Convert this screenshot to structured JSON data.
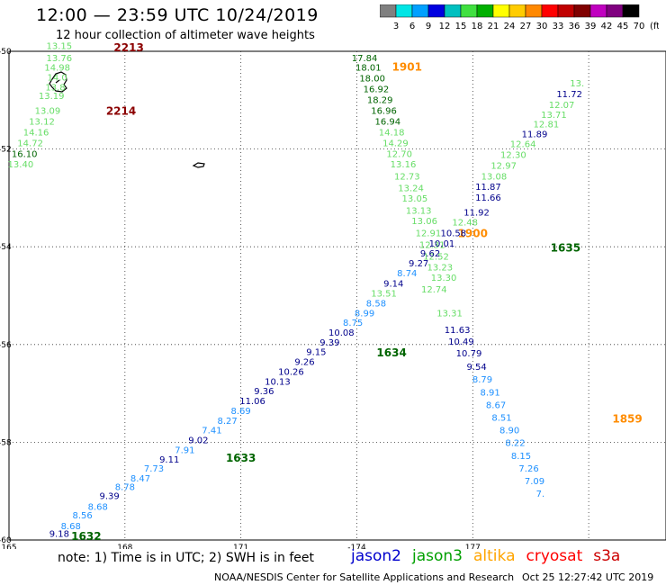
{
  "header": {
    "title": "12:00 — 23:59 UTC 10/24/2019",
    "subtitle": "12 hour collection of altimeter wave heights"
  },
  "colorbar": {
    "labels": [
      "3",
      "6",
      "9",
      "12",
      "15",
      "18",
      "21",
      "24",
      "27",
      "30",
      "33",
      "36",
      "39",
      "42",
      "45",
      "70"
    ],
    "unit": "(ft)",
    "colors": [
      "#808080",
      "#00e5e5",
      "#00a0ff",
      "#0000e0",
      "#00c0c0",
      "#40e040",
      "#00b000",
      "#ffff00",
      "#ffcc00",
      "#ff8800",
      "#ff0000",
      "#c00000",
      "#800000",
      "#c000c0",
      "#800080",
      "#000000"
    ]
  },
  "map": {
    "lon_ticks": [
      "165",
      "168",
      "171",
      "-174",
      "177"
    ],
    "lat_ticks": [
      "-50",
      "-52",
      "-54",
      "-56",
      "-58",
      "-60"
    ],
    "lon_range": [
      165,
      182
    ],
    "lat_range": [
      -60,
      -50
    ]
  },
  "tracks": [
    {
      "satellite": "cryosat",
      "labels": [
        {
          "text": "2213",
          "lon": 168.1,
          "lat": -50.0,
          "color": "#8b0000"
        },
        {
          "text": "2214",
          "lon": 167.9,
          "lat": -51.3,
          "color": "#8b0000"
        }
      ],
      "points": [
        {
          "value": "13.15",
          "lon": 166.3,
          "lat": -49.95,
          "color": "#66dd66"
        },
        {
          "value": "13.76",
          "lon": 166.3,
          "lat": -50.2,
          "color": "#66dd66"
        },
        {
          "value": "14.98",
          "lon": 166.25,
          "lat": -50.4,
          "color": "#66dd66"
        },
        {
          "value": "14.0",
          "lon": 166.25,
          "lat": -50.6,
          "color": "#66dd66"
        },
        {
          "value": "13.8",
          "lon": 166.2,
          "lat": -50.8,
          "color": "#66dd66"
        },
        {
          "value": "13.19",
          "lon": 166.1,
          "lat": -50.98,
          "color": "#66dd66"
        },
        {
          "value": "13.09",
          "lon": 166.0,
          "lat": -51.28,
          "color": "#66dd66"
        },
        {
          "value": "13.12",
          "lon": 165.85,
          "lat": -51.5,
          "color": "#66dd66"
        },
        {
          "value": "14.16",
          "lon": 165.7,
          "lat": -51.72,
          "color": "#66dd66"
        },
        {
          "value": "14.72",
          "lon": 165.55,
          "lat": -51.94,
          "color": "#66dd66"
        },
        {
          "value": "16.10",
          "lon": 165.4,
          "lat": -52.16,
          "color": "#006400"
        },
        {
          "value": "13.40",
          "lon": 165.3,
          "lat": -52.38,
          "color": "#66dd66"
        }
      ]
    },
    {
      "satellite": "altika",
      "labels": [
        {
          "text": "1901",
          "lon": 175.3,
          "lat": -50.4,
          "color": "#ff8c00"
        },
        {
          "text": "1900",
          "lon": 177.0,
          "lat": -53.8,
          "color": "#ff8c00"
        },
        {
          "text": "1859",
          "lon": 181.0,
          "lat": -57.6,
          "color": "#ff8c00"
        }
      ],
      "points": [
        {
          "value": "17.84",
          "lon": 174.2,
          "lat": -50.2,
          "color": "#006400"
        },
        {
          "value": "18.01",
          "lon": 174.3,
          "lat": -50.4,
          "color": "#006400"
        },
        {
          "value": "18.00",
          "lon": 174.4,
          "lat": -50.62,
          "color": "#006400"
        },
        {
          "value": "16.92",
          "lon": 174.5,
          "lat": -50.84,
          "color": "#006400"
        },
        {
          "value": "18.29",
          "lon": 174.6,
          "lat": -51.06,
          "color": "#006400"
        },
        {
          "value": "16.96",
          "lon": 174.7,
          "lat": -51.28,
          "color": "#006400"
        },
        {
          "value": "16.94",
          "lon": 174.8,
          "lat": -51.5,
          "color": "#006400"
        },
        {
          "value": "14.18",
          "lon": 174.9,
          "lat": -51.72,
          "color": "#66dd66"
        },
        {
          "value": "14.29",
          "lon": 175.0,
          "lat": -51.94,
          "color": "#66dd66"
        },
        {
          "value": "12.70",
          "lon": 175.1,
          "lat": -52.16,
          "color": "#66dd66"
        },
        {
          "value": "13.16",
          "lon": 175.2,
          "lat": -52.38,
          "color": "#66dd66"
        },
        {
          "value": "12.73",
          "lon": 175.3,
          "lat": -52.62,
          "color": "#66dd66"
        },
        {
          "value": "13.24",
          "lon": 175.4,
          "lat": -52.86,
          "color": "#66dd66"
        },
        {
          "value": "13.05",
          "lon": 175.5,
          "lat": -53.08,
          "color": "#66dd66"
        },
        {
          "value": "13.13",
          "lon": 175.6,
          "lat": -53.32,
          "color": "#66dd66"
        },
        {
          "value": "13.06",
          "lon": 175.75,
          "lat": -53.54,
          "color": "#66dd66"
        },
        {
          "value": "12.91",
          "lon": 175.85,
          "lat": -53.78,
          "color": "#66dd66"
        },
        {
          "value": "12.31",
          "lon": 175.95,
          "lat": -54.02,
          "color": "#66dd66"
        },
        {
          "value": "12.52",
          "lon": 176.05,
          "lat": -54.26,
          "color": "#66dd66"
        },
        {
          "value": "13.23",
          "lon": 176.15,
          "lat": -54.48,
          "color": "#66dd66"
        },
        {
          "value": "13.30",
          "lon": 176.25,
          "lat": -54.7,
          "color": "#66dd66"
        },
        {
          "value": "12.74",
          "lon": 176.0,
          "lat": -54.94,
          "color": "#66dd66"
        },
        {
          "value": "13.31",
          "lon": 176.4,
          "lat": -55.42,
          "color": "#66dd66"
        },
        {
          "value": "11.63",
          "lon": 176.6,
          "lat": -55.76,
          "color": "#00008b"
        },
        {
          "value": "10.49",
          "lon": 176.7,
          "lat": -56.0,
          "color": "#00008b"
        },
        {
          "value": "10.79",
          "lon": 176.9,
          "lat": -56.24,
          "color": "#00008b"
        },
        {
          "value": "9.54",
          "lon": 177.1,
          "lat": -56.52,
          "color": "#00008b"
        },
        {
          "value": "8.79",
          "lon": 177.25,
          "lat": -56.78,
          "color": "#1e90ff"
        },
        {
          "value": "8.91",
          "lon": 177.45,
          "lat": -57.04,
          "color": "#1e90ff"
        },
        {
          "value": "8.67",
          "lon": 177.6,
          "lat": -57.3,
          "color": "#1e90ff"
        },
        {
          "value": "8.51",
          "lon": 177.75,
          "lat": -57.56,
          "color": "#1e90ff"
        },
        {
          "value": "8.90",
          "lon": 177.95,
          "lat": -57.82,
          "color": "#1e90ff"
        },
        {
          "value": "8.22",
          "lon": 178.1,
          "lat": -58.08,
          "color": "#1e90ff"
        },
        {
          "value": "8.15",
          "lon": 178.25,
          "lat": -58.34,
          "color": "#1e90ff"
        },
        {
          "value": "7.26",
          "lon": 178.45,
          "lat": -58.6,
          "color": "#1e90ff"
        },
        {
          "value": "7.09",
          "lon": 178.6,
          "lat": -58.86,
          "color": "#1e90ff"
        },
        {
          "value": "7.",
          "lon": 178.75,
          "lat": -59.12,
          "color": "#1e90ff"
        }
      ]
    },
    {
      "satellite": "jason3",
      "labels": [
        {
          "text": "1632",
          "lon": 167.0,
          "lat": -60.0,
          "color": "#006400"
        },
        {
          "text": "1633",
          "lon": 171.0,
          "lat": -58.4,
          "color": "#006400"
        },
        {
          "text": "1634",
          "lon": 174.9,
          "lat": -56.24,
          "color": "#006400"
        },
        {
          "text": "1635",
          "lon": 179.4,
          "lat": -54.1,
          "color": "#006400"
        }
      ],
      "points": [
        {
          "value": "9.18",
          "lon": 166.3,
          "lat": -59.94,
          "color": "#00008b"
        },
        {
          "value": "8.68",
          "lon": 166.6,
          "lat": -59.78,
          "color": "#1e90ff"
        },
        {
          "value": "8.56",
          "lon": 166.9,
          "lat": -59.56,
          "color": "#1e90ff"
        },
        {
          "value": "8.68",
          "lon": 167.3,
          "lat": -59.38,
          "color": "#1e90ff"
        },
        {
          "value": "9.39",
          "lon": 167.6,
          "lat": -59.16,
          "color": "#00008b"
        },
        {
          "value": "8.78",
          "lon": 168.0,
          "lat": -58.98,
          "color": "#1e90ff"
        },
        {
          "value": "8.47",
          "lon": 168.4,
          "lat": -58.8,
          "color": "#1e90ff"
        },
        {
          "value": "7.73",
          "lon": 168.75,
          "lat": -58.6,
          "color": "#1e90ff"
        },
        {
          "value": "9.11",
          "lon": 169.15,
          "lat": -58.42,
          "color": "#00008b"
        },
        {
          "value": "7.91",
          "lon": 169.55,
          "lat": -58.22,
          "color": "#1e90ff"
        },
        {
          "value": "9.02",
          "lon": 169.9,
          "lat": -58.02,
          "color": "#00008b"
        },
        {
          "value": "7.41",
          "lon": 170.25,
          "lat": -57.82,
          "color": "#1e90ff"
        },
        {
          "value": "8.27",
          "lon": 170.65,
          "lat": -57.62,
          "color": "#1e90ff"
        },
        {
          "value": "8.69",
          "lon": 171.0,
          "lat": -57.42,
          "color": "#1e90ff"
        },
        {
          "value": "11.06",
          "lon": 171.3,
          "lat": -57.22,
          "color": "#00008b"
        },
        {
          "value": "9.36",
          "lon": 171.6,
          "lat": -57.02,
          "color": "#00008b"
        },
        {
          "value": "10.13",
          "lon": 171.95,
          "lat": -56.82,
          "color": "#00008b"
        },
        {
          "value": "10.26",
          "lon": 172.3,
          "lat": -56.62,
          "color": "#00008b"
        },
        {
          "value": "9.26",
          "lon": 172.65,
          "lat": -56.42,
          "color": "#00008b"
        },
        {
          "value": "9.15",
          "lon": 172.95,
          "lat": -56.22,
          "color": "#00008b"
        },
        {
          "value": "9.39",
          "lon": 173.3,
          "lat": -56.02,
          "color": "#00008b"
        },
        {
          "value": "10.08",
          "lon": 173.6,
          "lat": -55.82,
          "color": "#00008b"
        },
        {
          "value": "8.75",
          "lon": 173.9,
          "lat": -55.62,
          "color": "#1e90ff"
        },
        {
          "value": "8.99",
          "lon": 174.2,
          "lat": -55.42,
          "color": "#1e90ff"
        },
        {
          "value": "8.58",
          "lon": 174.5,
          "lat": -55.22,
          "color": "#1e90ff"
        },
        {
          "value": "13.51",
          "lon": 174.7,
          "lat": -55.02,
          "color": "#66dd66"
        },
        {
          "value": "9.14",
          "lon": 174.95,
          "lat": -54.82,
          "color": "#00008b"
        },
        {
          "value": "8.74",
          "lon": 175.3,
          "lat": -54.6,
          "color": "#1e90ff"
        },
        {
          "value": "9.27",
          "lon": 175.6,
          "lat": -54.4,
          "color": "#00008b"
        },
        {
          "value": "9.62",
          "lon": 175.9,
          "lat": -54.2,
          "color": "#00008b"
        },
        {
          "value": "10.01",
          "lon": 176.2,
          "lat": -54.0,
          "color": "#00008b"
        },
        {
          "value": "10.58",
          "lon": 176.5,
          "lat": -53.78,
          "color": "#00008b"
        },
        {
          "value": "12.48",
          "lon": 176.8,
          "lat": -53.56,
          "color": "#66dd66"
        },
        {
          "value": "11.92",
          "lon": 177.1,
          "lat": -53.36,
          "color": "#00008b"
        },
        {
          "value": "11.66",
          "lon": 177.4,
          "lat": -53.06,
          "color": "#00008b"
        },
        {
          "value": "11.87",
          "lon": 177.4,
          "lat": -52.84,
          "color": "#00008b"
        },
        {
          "value": "13.08",
          "lon": 177.55,
          "lat": -52.62,
          "color": "#66dd66"
        },
        {
          "value": "12.97",
          "lon": 177.8,
          "lat": -52.4,
          "color": "#66dd66"
        },
        {
          "value": "12.30",
          "lon": 178.05,
          "lat": -52.18,
          "color": "#66dd66"
        },
        {
          "value": "12.64",
          "lon": 178.3,
          "lat": -51.96,
          "color": "#66dd66"
        },
        {
          "value": "11.89",
          "lon": 178.6,
          "lat": -51.76,
          "color": "#00008b"
        },
        {
          "value": "12.81",
          "lon": 178.9,
          "lat": -51.56,
          "color": "#66dd66"
        },
        {
          "value": "13.71",
          "lon": 179.1,
          "lat": -51.36,
          "color": "#66dd66"
        },
        {
          "value": "12.07",
          "lon": 179.3,
          "lat": -51.16,
          "color": "#66dd66"
        },
        {
          "value": "11.72",
          "lon": 179.5,
          "lat": -50.94,
          "color": "#00008b"
        },
        {
          "value": "13.",
          "lon": 179.7,
          "lat": -50.72,
          "color": "#66dd66"
        }
      ]
    }
  ],
  "footer": {
    "note": "note:  1) Time is in UTC;  2) SWH is in feet",
    "legend": [
      {
        "name": "jason2",
        "color": "#0000cd"
      },
      {
        "name": "jason3",
        "color": "#00a000"
      },
      {
        "name": "altika",
        "color": "#ffa500"
      },
      {
        "name": "cryosat",
        "color": "#ff0000"
      },
      {
        "name": "s3a",
        "color": "#cc0000"
      }
    ],
    "credit": "NOAA/NESDIS Center for Satellite Applications and Research",
    "timestamp": "Oct 25 12:27:42 UTC 2019"
  }
}
